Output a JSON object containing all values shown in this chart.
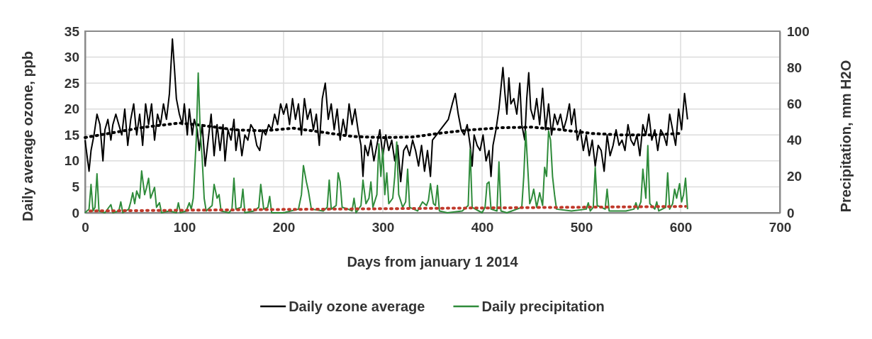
{
  "chart_data": {
    "type": "line",
    "xlabel": "Days from january 1  2014",
    "ylabel": "Daily average ozone, ppb",
    "y2label": "Precipitation, mm H2O",
    "xlim": [
      0,
      700
    ],
    "xticks": [
      0,
      100,
      200,
      300,
      400,
      500,
      600,
      700
    ],
    "ylim": [
      0,
      35
    ],
    "yticks": [
      0,
      5,
      10,
      15,
      20,
      25,
      30,
      35
    ],
    "y2lim": [
      0,
      100
    ],
    "y2ticks": [
      0,
      20,
      40,
      60,
      80,
      100
    ],
    "grid": true,
    "legend": "bottom",
    "series": [
      {
        "name": "Daily ozone average",
        "color": "#000000",
        "line_style": "solid",
        "x": [
          0,
          2,
          4,
          6,
          9,
          12,
          15,
          18,
          20,
          23,
          26,
          28,
          31,
          34,
          37,
          40,
          43,
          46,
          49,
          52,
          55,
          58,
          61,
          64,
          67,
          70,
          73,
          76,
          79,
          82,
          85,
          88,
          90,
          92,
          95,
          98,
          100,
          103,
          105,
          108,
          110,
          113,
          115,
          118,
          121,
          124,
          127,
          130,
          133,
          136,
          139,
          141,
          144,
          147,
          150,
          152,
          155,
          158,
          161,
          164,
          167,
          170,
          173,
          176,
          179,
          182,
          185,
          188,
          191,
          194,
          197,
          200,
          203,
          206,
          209,
          212,
          215,
          218,
          221,
          224,
          227,
          230,
          233,
          236,
          239,
          242,
          245,
          248,
          251,
          254,
          257,
          260,
          263,
          266,
          269,
          272,
          275,
          278,
          280,
          282,
          285,
          288,
          291,
          294,
          297,
          300,
          303,
          306,
          309,
          312,
          315,
          318,
          321,
          324,
          327,
          330,
          333,
          336,
          339,
          342,
          345,
          348,
          350,
          354,
          358,
          362,
          366,
          370,
          373,
          376,
          379,
          382,
          385,
          388,
          390,
          392,
          395,
          398,
          401,
          404,
          407,
          409,
          411,
          414,
          417,
          419,
          421,
          423,
          425,
          427,
          429,
          432,
          435,
          438,
          440,
          443,
          445,
          447,
          449,
          452,
          455,
          458,
          461,
          464,
          467,
          470,
          473,
          476,
          479,
          482,
          485,
          488,
          490,
          493,
          496,
          499,
          502,
          505,
          508,
          511,
          514,
          517,
          520,
          523,
          526,
          529,
          532,
          535,
          538,
          541,
          544,
          547,
          550,
          553,
          556,
          559,
          562,
          565,
          568,
          571,
          574,
          577,
          580,
          583,
          586,
          589,
          592,
          595,
          598,
          601,
          604,
          607
        ],
        "values": [
          14,
          11,
          8,
          12,
          15,
          19,
          17,
          10,
          16,
          18,
          14,
          17,
          19,
          17,
          15,
          20,
          13,
          18,
          21,
          15,
          19,
          13,
          21,
          17,
          21,
          14,
          19,
          17,
          21,
          18,
          23,
          33.5,
          28,
          22,
          19,
          17,
          21,
          15,
          20,
          15,
          18,
          16,
          12,
          17,
          9,
          14,
          19,
          11,
          17,
          12,
          17,
          10,
          16,
          14,
          18,
          12,
          16,
          11,
          15,
          14,
          17,
          16,
          13,
          12,
          16,
          15,
          17,
          16,
          19,
          17,
          21,
          19,
          21,
          17,
          22,
          18,
          21,
          15,
          22,
          18,
          20,
          16,
          19,
          13,
          22,
          25,
          18,
          21,
          16,
          20,
          14,
          18,
          15,
          21,
          17,
          20,
          16,
          13,
          7,
          13,
          11,
          14,
          10,
          13,
          16,
          11,
          15,
          12,
          14,
          10,
          13,
          6,
          12,
          13,
          11,
          14,
          12,
          9,
          13,
          8,
          12,
          7,
          14,
          15,
          16,
          17,
          18,
          21,
          23,
          19,
          16,
          15,
          17,
          13,
          9,
          15,
          13,
          12,
          15,
          10,
          12,
          7,
          13,
          16,
          20,
          24,
          28,
          23,
          19,
          26,
          21,
          22,
          19,
          25,
          17,
          14,
          22,
          27,
          20,
          18,
          22,
          17,
          24,
          16,
          21,
          15,
          19,
          17,
          19,
          16,
          18,
          21,
          17,
          20,
          14,
          16,
          12,
          15,
          11,
          14,
          9,
          13,
          12,
          8,
          15,
          11,
          13,
          16,
          13,
          14,
          12,
          17,
          14,
          13,
          15,
          11,
          17,
          15,
          19,
          14,
          16,
          12,
          16,
          15,
          13,
          19,
          16,
          13,
          20,
          16,
          23,
          18
        ]
      },
      {
        "color": "#000000",
        "line_style": "dotted",
        "x": [
          0,
          30,
          60,
          95,
          120,
          150,
          180,
          210,
          240,
          270,
          300,
          330,
          360,
          390,
          420,
          450,
          480,
          510,
          540,
          570,
          600
        ],
        "values": [
          14.5,
          15.5,
          16.5,
          17.3,
          16.8,
          16,
          15.8,
          16.3,
          15.5,
          14.7,
          14.5,
          14.6,
          15.4,
          16,
          16.4,
          16.5,
          16,
          15.3,
          15,
          15,
          15.3
        ]
      },
      {
        "name": "Daily precipitation",
        "color": "#2e8b3a",
        "line_style": "solid",
        "axis": "y2",
        "x": [
          0,
          4,
          6,
          8,
          10,
          12,
          14,
          20,
          26,
          28,
          34,
          36,
          38,
          44,
          46,
          48,
          50,
          52,
          55,
          57,
          60,
          62,
          64,
          66,
          68,
          70,
          72,
          75,
          77,
          85,
          92,
          94,
          96,
          102,
          105,
          107,
          109,
          112,
          114,
          116,
          118,
          120,
          122,
          128,
          130,
          133,
          135,
          137,
          145,
          148,
          150,
          152,
          157,
          159,
          161,
          170,
          175,
          177,
          180,
          184,
          186,
          188,
          200,
          215,
          218,
          220,
          223,
          225,
          228,
          240,
          244,
          246,
          248,
          253,
          255,
          257,
          259,
          265,
          269,
          271,
          273,
          278,
          280,
          283,
          286,
          288,
          290,
          294,
          296,
          298,
          300,
          302,
          304,
          306,
          310,
          312,
          314,
          316,
          320,
          323,
          325,
          327,
          335,
          338,
          340,
          344,
          346,
          348,
          351,
          353,
          355,
          357,
          365,
          380,
          386,
          388,
          390,
          400,
          403,
          405,
          407,
          409,
          415,
          417,
          419,
          425,
          440,
          442,
          444,
          446,
          448,
          450,
          452,
          455,
          458,
          461,
          463,
          465,
          467,
          469,
          471,
          473,
          475,
          490,
          505,
          507,
          509,
          512,
          514,
          516,
          524,
          526,
          528,
          545,
          553,
          555,
          557,
          560,
          562,
          565,
          567,
          569,
          574,
          576,
          578,
          585,
          587,
          589,
          592,
          594,
          596,
          599,
          601,
          603,
          605,
          607
        ],
        "values": [
          0,
          2,
          15.6,
          1,
          3,
          21.5,
          1,
          0,
          4.5,
          0,
          1,
          6,
          0,
          2,
          6,
          11,
          5,
          12,
          8,
          23,
          10,
          14,
          19,
          8,
          11,
          14,
          3,
          5.5,
          0,
          1,
          0,
          5.5,
          0,
          1,
          5.5,
          2,
          8,
          40,
          77,
          45,
          30,
          8,
          1,
          4,
          15.6,
          8,
          10,
          1,
          0,
          2,
          19,
          2,
          3,
          13,
          0,
          1,
          3,
          15.6,
          2,
          3,
          9,
          0,
          0,
          2,
          10,
          26,
          17,
          12,
          2,
          1,
          3,
          18,
          2,
          4,
          22,
          17,
          3,
          2,
          1,
          8,
          0,
          4,
          18,
          5,
          8,
          17,
          3,
          10,
          38,
          20,
          35,
          10,
          22,
          5,
          8,
          20,
          39,
          10,
          3,
          6,
          24,
          3,
          1,
          4,
          6,
          4,
          7,
          16,
          5,
          4,
          15,
          1,
          0,
          1,
          4,
          35,
          3,
          0,
          3,
          16,
          17,
          2,
          1,
          28,
          1,
          0,
          3,
          20,
          45,
          25,
          5,
          8,
          13,
          3,
          11,
          4,
          25,
          20,
          45,
          40,
          20,
          10,
          2,
          1,
          2,
          5.5,
          1,
          3,
          25,
          4,
          2,
          13,
          1,
          1,
          2,
          5.5,
          2,
          6,
          24,
          8,
          37,
          5,
          2,
          6,
          1,
          3,
          22,
          2,
          5,
          13,
          8,
          16,
          6,
          10,
          19,
          2
        ]
      },
      {
        "color": "#c0392b",
        "line_style": "dotted",
        "axis": "y2",
        "x": [
          5,
          605
        ],
        "values": [
          1,
          3.5
        ]
      }
    ]
  }
}
